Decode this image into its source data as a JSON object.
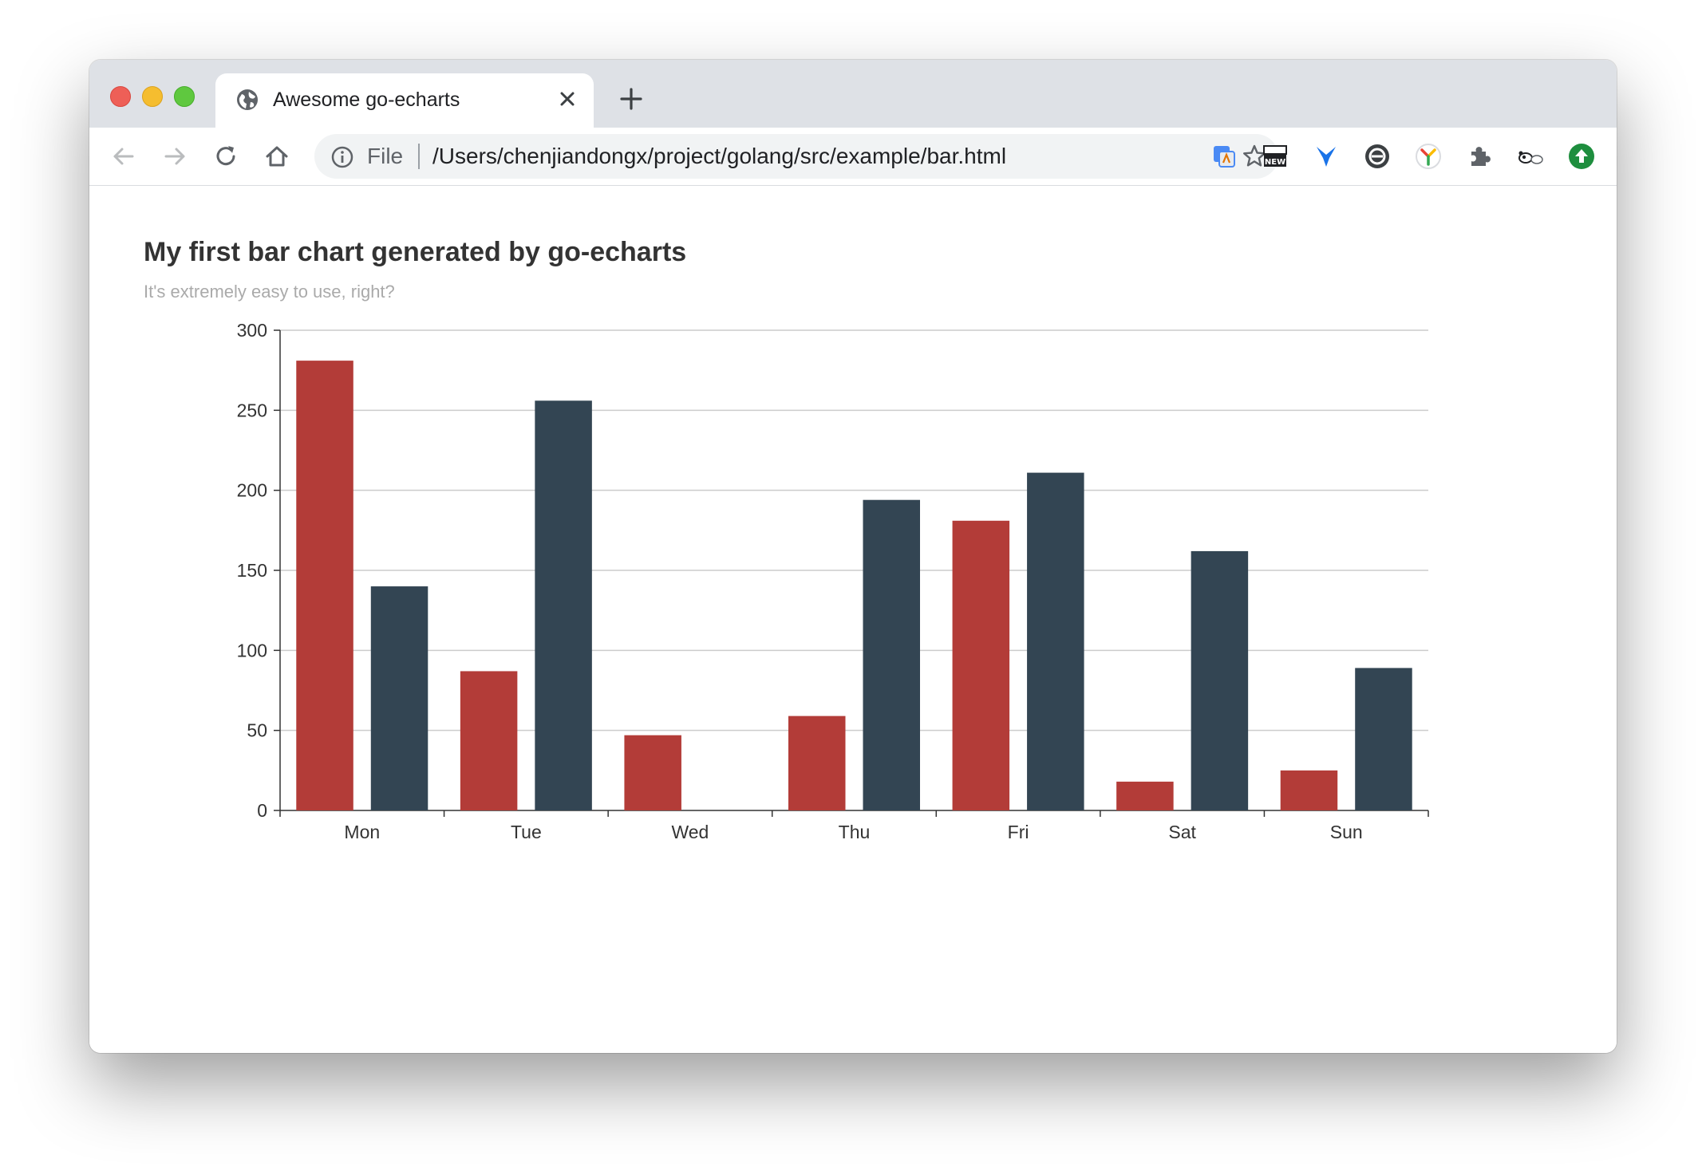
{
  "browser": {
    "tab": {
      "title": "Awesome go-echarts"
    },
    "address": {
      "scheme_label": "File",
      "url": "/Users/chenjiandongx/project/golang/src/example/bar.html"
    },
    "icons": {
      "globe": "globe-icon",
      "close": "close-icon",
      "new_tab": "plus-icon",
      "back": "back-arrow-icon",
      "forward": "forward-arrow-icon",
      "reload": "reload-icon",
      "home": "home-icon",
      "info": "info-icon",
      "star": "star-icon",
      "extensions": "puzzle-icon"
    },
    "colors": {
      "tabstrip": "#dee1e6",
      "omnibox": "#f1f3f4",
      "close": "#ee5f57",
      "minimize": "#f5bd2f",
      "maximize": "#5fc83f"
    }
  },
  "chart_data": {
    "type": "bar",
    "title": "My first bar chart generated by go-echarts",
    "subtitle": "It's extremely easy to use, right?",
    "categories": [
      "Mon",
      "Tue",
      "Wed",
      "Thu",
      "Fri",
      "Sat",
      "Sun"
    ],
    "series": [
      {
        "values": [
          281,
          87,
          47,
          59,
          181,
          18,
          25
        ],
        "color": "#b33c38"
      },
      {
        "values": [
          140,
          256,
          0,
          194,
          211,
          162,
          89
        ],
        "color": "#334553"
      }
    ],
    "ylim": [
      0,
      300
    ],
    "yticks": [
      0,
      50,
      100,
      150,
      200,
      250,
      300
    ],
    "grid": true,
    "legend": "none"
  }
}
